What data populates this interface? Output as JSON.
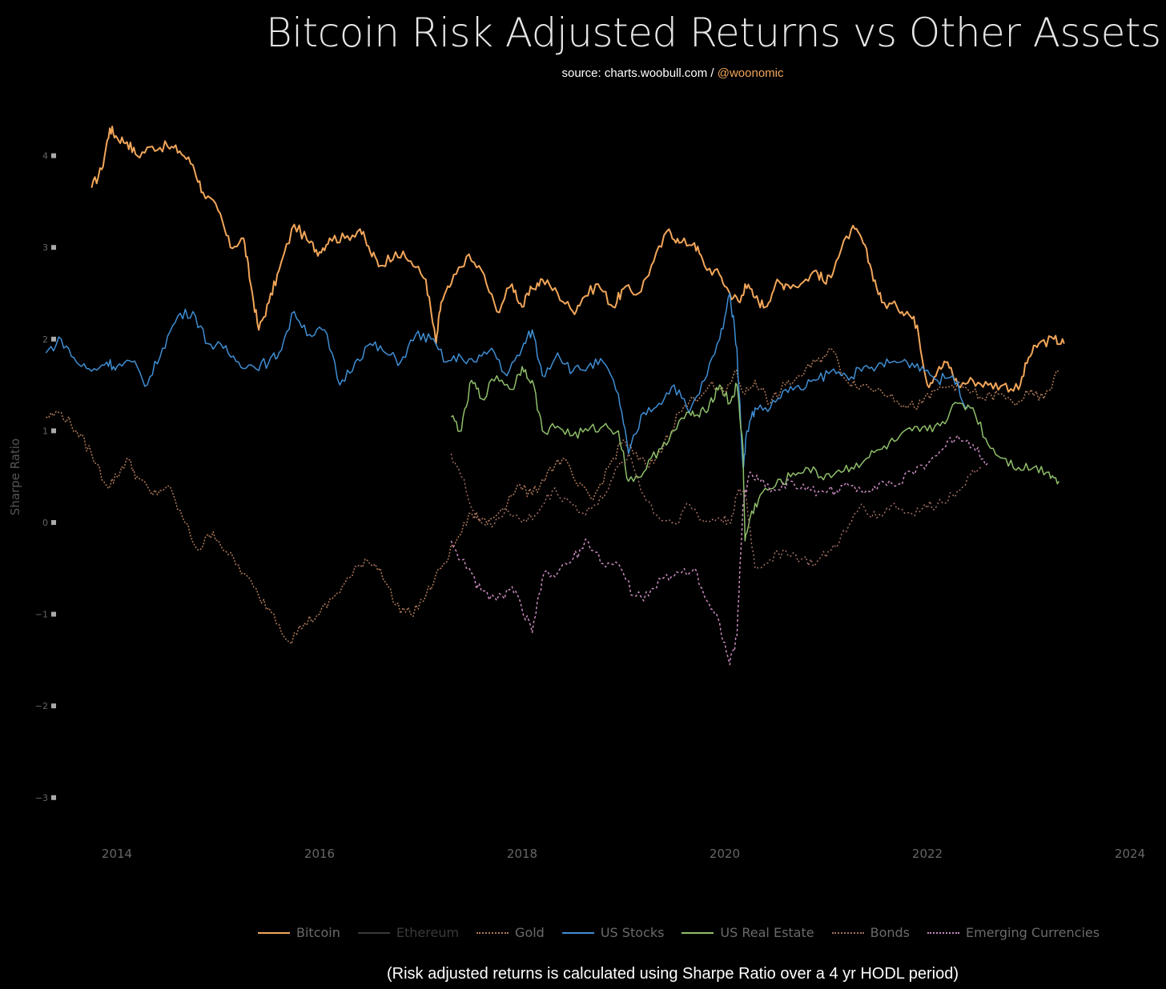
{
  "title": "Bitcoin Risk Adjusted Returns vs Other Assets",
  "subtitle_source": "source: charts.woobull.com / ",
  "subtitle_handle": "@woonomic",
  "footnote": "(Risk adjusted returns is calculated using Sharpe Ratio over a 4 yr HODL period)",
  "chart_data": {
    "type": "line",
    "title": "Bitcoin Risk Adjusted Returns vs Other Assets",
    "ylabel": "Sharpe Ratio",
    "xlabel": "",
    "xlim": [
      2013.0,
      2024.0
    ],
    "ylim": [
      -3.5,
      4.8
    ],
    "x_ticks": [
      "2014",
      "2016",
      "2018",
      "2020",
      "2022",
      "2024"
    ],
    "y_ticks": [
      "−3",
      "−2",
      "−1",
      "0",
      "1",
      "2",
      "3",
      "4"
    ],
    "grid": false,
    "legend_position": "bottom",
    "series": [
      {
        "name": "Bitcoin",
        "color": "#f2a65a",
        "dash": "solid",
        "width": 2,
        "x": [
          2013.75,
          2013.85,
          2013.93,
          2014.0,
          2014.1,
          2014.2,
          2014.35,
          2014.5,
          2014.62,
          2014.75,
          2014.85,
          2015.0,
          2015.12,
          2015.25,
          2015.32,
          2015.4,
          2015.5,
          2015.6,
          2015.75,
          2015.9,
          2016.0,
          2016.1,
          2016.25,
          2016.4,
          2016.5,
          2016.6,
          2016.75,
          2016.9,
          2017.05,
          2017.15,
          2017.2,
          2017.3,
          2017.45,
          2017.6,
          2017.75,
          2017.9,
          2018.0,
          2018.1,
          2018.2,
          2018.35,
          2018.5,
          2018.6,
          2018.75,
          2018.9,
          2019.0,
          2019.15,
          2019.3,
          2019.45,
          2019.55,
          2019.7,
          2019.8,
          2019.95,
          2020.05,
          2020.15,
          2020.2,
          2020.3,
          2020.4,
          2020.5,
          2020.6,
          2020.75,
          2020.9,
          2021.0,
          2021.1,
          2021.25,
          2021.35,
          2021.45,
          2021.55,
          2021.7,
          2021.8,
          2021.9,
          2022.0,
          2022.1,
          2022.2,
          2022.3,
          2022.45,
          2022.6,
          2022.75,
          2022.9,
          2023.0,
          2023.1,
          2023.25,
          2023.35
        ],
        "y": [
          3.65,
          3.85,
          4.3,
          4.2,
          4.15,
          4.0,
          4.1,
          4.1,
          4.05,
          3.9,
          3.6,
          3.4,
          3.0,
          3.1,
          2.6,
          2.1,
          2.4,
          2.75,
          3.25,
          3.05,
          2.95,
          3.1,
          3.1,
          3.2,
          2.95,
          2.8,
          2.95,
          2.85,
          2.65,
          1.95,
          2.4,
          2.6,
          2.9,
          2.75,
          2.3,
          2.6,
          2.35,
          2.55,
          2.65,
          2.5,
          2.3,
          2.45,
          2.6,
          2.35,
          2.55,
          2.5,
          2.85,
          3.2,
          3.05,
          3.05,
          2.8,
          2.7,
          2.5,
          2.4,
          2.6,
          2.45,
          2.35,
          2.6,
          2.6,
          2.6,
          2.75,
          2.6,
          2.85,
          3.2,
          3.1,
          2.75,
          2.4,
          2.35,
          2.3,
          2.15,
          1.5,
          1.65,
          1.75,
          1.5,
          1.55,
          1.5,
          1.5,
          1.45,
          1.8,
          1.95,
          2.0,
          1.95
        ]
      },
      {
        "name": "Ethereum",
        "color": "#3a3a3a",
        "dash": "solid",
        "width": 1.5,
        "x": [],
        "y": []
      },
      {
        "name": "Gold",
        "color": "#b07a5a",
        "dash": "2,2",
        "width": 1.5,
        "x": [
          2013.3,
          2013.45,
          2013.6,
          2013.75,
          2013.9,
          2014.0,
          2014.1,
          2014.2,
          2014.35,
          2014.5,
          2014.65,
          2014.8,
          2014.95,
          2015.1,
          2015.25,
          2015.4,
          2015.55,
          2015.7,
          2015.85,
          2016.0,
          2016.15,
          2016.3,
          2016.45,
          2016.6,
          2016.75,
          2016.9,
          2017.05,
          2017.2,
          2017.35,
          2017.5,
          2017.65,
          2017.8,
          2017.95,
          2018.1,
          2018.25,
          2018.4,
          2018.55,
          2018.7,
          2018.85,
          2019.0,
          2019.1,
          2019.25,
          2019.4,
          2019.55,
          2019.7,
          2019.85,
          2020.0,
          2020.1,
          2020.2,
          2020.3,
          2020.45,
          2020.6,
          2020.75,
          2020.9,
          2021.05,
          2021.2,
          2021.35,
          2021.5,
          2021.65,
          2021.8,
          2021.95,
          2022.1,
          2022.25,
          2022.4,
          2022.55,
          2022.7,
          2022.85,
          2023.0,
          2023.15,
          2023.3
        ],
        "y": [
          1.15,
          1.2,
          1.0,
          0.75,
          0.4,
          0.5,
          0.7,
          0.5,
          0.3,
          0.4,
          0.05,
          -0.3,
          -0.1,
          -0.35,
          -0.55,
          -0.8,
          -1.0,
          -1.3,
          -1.1,
          -1.0,
          -0.8,
          -0.6,
          -0.4,
          -0.5,
          -0.9,
          -1.0,
          -0.8,
          -0.5,
          -0.2,
          0.1,
          0.0,
          0.15,
          0.4,
          0.3,
          0.55,
          0.7,
          0.4,
          0.25,
          0.6,
          0.9,
          0.75,
          0.6,
          0.85,
          1.2,
          1.35,
          1.5,
          1.4,
          1.65,
          1.4,
          1.55,
          1.3,
          1.5,
          1.6,
          1.75,
          1.9,
          1.55,
          1.5,
          1.45,
          1.4,
          1.25,
          1.3,
          1.45,
          1.5,
          1.45,
          1.35,
          1.4,
          1.3,
          1.4,
          1.35,
          1.65
        ]
      },
      {
        "name": "US Stocks",
        "color": "#3f8ed3",
        "dash": "solid",
        "width": 1.5,
        "x": [
          2013.3,
          2013.45,
          2013.6,
          2013.75,
          2013.9,
          2014.0,
          2014.15,
          2014.3,
          2014.45,
          2014.6,
          2014.75,
          2014.9,
          2015.05,
          2015.2,
          2015.35,
          2015.5,
          2015.6,
          2015.75,
          2015.9,
          2016.05,
          2016.2,
          2016.35,
          2016.5,
          2016.65,
          2016.8,
          2016.95,
          2017.1,
          2017.25,
          2017.4,
          2017.55,
          2017.7,
          2017.85,
          2018.0,
          2018.1,
          2018.2,
          2018.35,
          2018.5,
          2018.65,
          2018.8,
          2018.95,
          2019.05,
          2019.2,
          2019.35,
          2019.5,
          2019.65,
          2019.8,
          2019.95,
          2020.05,
          2020.12,
          2020.18,
          2020.22,
          2020.3,
          2020.45,
          2020.6,
          2020.75,
          2020.9,
          2021.05,
          2021.2,
          2021.35,
          2021.5,
          2021.65,
          2021.8,
          2021.95,
          2022.1,
          2022.25,
          2022.4
        ],
        "y": [
          1.85,
          2.0,
          1.75,
          1.65,
          1.75,
          1.7,
          1.75,
          1.5,
          1.9,
          2.25,
          2.3,
          1.95,
          1.9,
          1.75,
          1.7,
          1.75,
          1.85,
          2.3,
          2.05,
          2.1,
          1.5,
          1.75,
          1.95,
          1.85,
          1.75,
          2.05,
          2.0,
          1.75,
          1.8,
          1.75,
          1.9,
          1.6,
          1.9,
          2.1,
          1.6,
          1.85,
          1.65,
          1.7,
          1.75,
          1.4,
          0.75,
          1.2,
          1.3,
          1.5,
          1.2,
          1.55,
          2.0,
          2.5,
          1.9,
          0.6,
          1.0,
          1.25,
          1.25,
          1.45,
          1.45,
          1.55,
          1.65,
          1.6,
          1.65,
          1.7,
          1.75,
          1.75,
          1.7,
          1.55,
          1.6,
          1.25
        ]
      },
      {
        "name": "US Real Estate",
        "color": "#8fbf6a",
        "dash": "solid",
        "width": 1.5,
        "x": [
          2017.3,
          2017.4,
          2017.5,
          2017.6,
          2017.75,
          2017.9,
          2018.0,
          2018.1,
          2018.2,
          2018.35,
          2018.5,
          2018.65,
          2018.8,
          2018.95,
          2019.05,
          2019.2,
          2019.35,
          2019.5,
          2019.65,
          2019.75,
          2019.85,
          2019.95,
          2020.05,
          2020.12,
          2020.18,
          2020.2,
          2020.25,
          2020.35,
          2020.5,
          2020.65,
          2020.8,
          2020.95,
          2021.1,
          2021.25,
          2021.4,
          2021.55,
          2021.7,
          2021.85,
          2022.0,
          2022.15,
          2022.3,
          2022.45,
          2022.6,
          2022.75,
          2022.9,
          2023.05,
          2023.2,
          2023.3
        ],
        "y": [
          1.15,
          1.0,
          1.55,
          1.35,
          1.6,
          1.45,
          1.7,
          1.55,
          1.0,
          1.05,
          0.95,
          1.0,
          1.05,
          1.0,
          0.45,
          0.55,
          0.8,
          1.0,
          1.2,
          1.15,
          1.3,
          1.5,
          1.3,
          1.5,
          0.8,
          -0.2,
          0.05,
          0.3,
          0.4,
          0.5,
          0.6,
          0.5,
          0.55,
          0.6,
          0.7,
          0.8,
          0.9,
          1.0,
          1.0,
          1.1,
          1.3,
          1.25,
          0.85,
          0.7,
          0.6,
          0.6,
          0.55,
          0.45
        ]
      },
      {
        "name": "Bonds",
        "color": "#a37065",
        "dash": "2,3",
        "width": 1.5,
        "x": [
          2017.3,
          2017.4,
          2017.55,
          2017.7,
          2017.85,
          2018.0,
          2018.15,
          2018.3,
          2018.45,
          2018.6,
          2018.75,
          2018.9,
          2019.05,
          2019.2,
          2019.35,
          2019.5,
          2019.65,
          2019.8,
          2019.95,
          2020.05,
          2020.12,
          2020.2,
          2020.3,
          2020.45,
          2020.6,
          2020.75,
          2020.9,
          2021.05,
          2021.2,
          2021.35,
          2021.5,
          2021.65,
          2021.8,
          2021.95,
          2022.1,
          2022.25,
          2022.4,
          2022.55
        ],
        "y": [
          0.75,
          0.5,
          0.05,
          -0.05,
          0.15,
          0.0,
          0.1,
          0.35,
          0.25,
          0.1,
          0.2,
          0.5,
          0.75,
          0.3,
          0.05,
          0.0,
          0.2,
          0.0,
          0.05,
          0.0,
          0.3,
          0.35,
          -0.5,
          -0.4,
          -0.3,
          -0.4,
          -0.45,
          -0.3,
          -0.1,
          0.2,
          0.05,
          0.2,
          0.1,
          0.15,
          0.2,
          0.3,
          0.5,
          0.6
        ]
      },
      {
        "name": "Emerging Currencies",
        "color": "#c98bc0",
        "dash": "3,3",
        "width": 1.5,
        "x": [
          2017.3,
          2017.45,
          2017.6,
          2017.75,
          2017.9,
          2018.0,
          2018.1,
          2018.2,
          2018.35,
          2018.5,
          2018.65,
          2018.8,
          2018.95,
          2019.1,
          2019.25,
          2019.4,
          2019.55,
          2019.7,
          2019.85,
          2019.95,
          2020.05,
          2020.12,
          2020.18,
          2020.25,
          2020.35,
          2020.5,
          2020.65,
          2020.8,
          2020.95,
          2021.1,
          2021.25,
          2021.4,
          2021.55,
          2021.7,
          2021.85,
          2022.0,
          2022.15,
          2022.3,
          2022.45,
          2022.6
        ],
        "y": [
          -0.2,
          -0.5,
          -0.75,
          -0.85,
          -0.7,
          -0.95,
          -1.2,
          -0.6,
          -0.55,
          -0.4,
          -0.2,
          -0.45,
          -0.45,
          -0.8,
          -0.8,
          -0.6,
          -0.55,
          -0.5,
          -0.9,
          -1.1,
          -1.55,
          -1.25,
          0.2,
          0.55,
          0.45,
          0.35,
          0.45,
          0.35,
          0.35,
          0.35,
          0.4,
          0.35,
          0.45,
          0.4,
          0.55,
          0.65,
          0.8,
          0.95,
          0.85,
          0.65
        ]
      }
    ]
  }
}
